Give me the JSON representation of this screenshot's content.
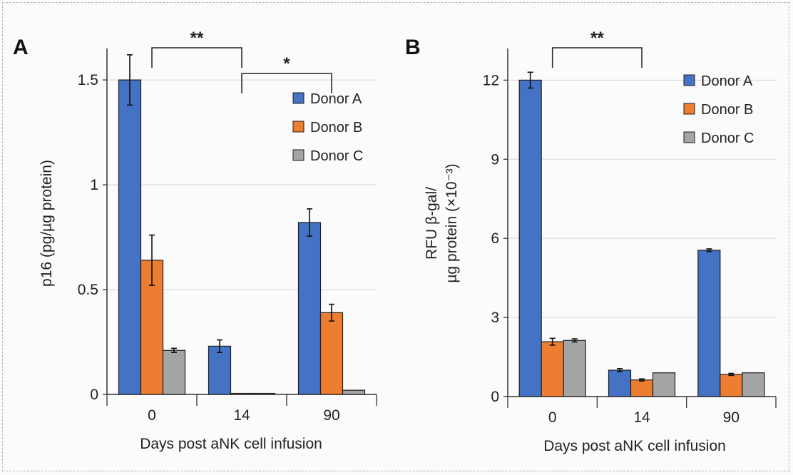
{
  "colors": {
    "donor_a": "#4472c4",
    "donor_b": "#ed7d31",
    "donor_c": "#a5a5a5",
    "grid": "#d6d6d6",
    "axis": "#333333"
  },
  "chart_data": [
    {
      "panel": "A",
      "type": "bar",
      "categories": [
        "0",
        "14",
        "90"
      ],
      "xlabel": "Days post aNK cell infusion",
      "ylabel": "p16 (pg/µg protein)",
      "ylim": [
        0,
        1.65
      ],
      "yticks": [
        0,
        0.5,
        1,
        1.5
      ],
      "ytick_labels": [
        "0",
        "0.5",
        "1",
        "1.5"
      ],
      "grid": true,
      "legend_position": "top-right",
      "series": [
        {
          "name": "Donor A",
          "values": [
            1.5,
            0.23,
            0.82
          ],
          "errors": [
            0.12,
            0.03,
            0.065
          ]
        },
        {
          "name": "Donor B",
          "values": [
            0.64,
            0.005,
            0.39
          ],
          "errors": [
            0.12,
            0.0,
            0.04
          ]
        },
        {
          "name": "Donor C",
          "values": [
            0.21,
            0.005,
            0.02
          ],
          "errors": [
            0.01,
            0.0,
            0.0
          ]
        }
      ],
      "significance": [
        {
          "from": 0,
          "to": 1,
          "label": "**",
          "level": 1
        },
        {
          "from": 1,
          "to": 2,
          "label": "*",
          "level": 2
        }
      ]
    },
    {
      "panel": "B",
      "type": "bar",
      "categories": [
        "0",
        "14",
        "90"
      ],
      "xlabel": "Days post aNK cell infusion",
      "ylabel_lines": [
        "RFU β-gal/",
        "µg protein (×10⁻³)"
      ],
      "ylim": [
        0,
        13.2
      ],
      "yticks": [
        0,
        3,
        6,
        9,
        12
      ],
      "ytick_labels": [
        "0",
        "3",
        "6",
        "9",
        "12"
      ],
      "grid": true,
      "legend_position": "top-right",
      "series": [
        {
          "name": "Donor A",
          "values": [
            12.0,
            1.0,
            5.55
          ],
          "errors": [
            0.3,
            0.06,
            0.05
          ]
        },
        {
          "name": "Donor B",
          "values": [
            2.08,
            0.63,
            0.84
          ],
          "errors": [
            0.13,
            0.04,
            0.04
          ]
        },
        {
          "name": "Donor C",
          "values": [
            2.13,
            0.9,
            0.9
          ],
          "errors": [
            0.06,
            0.0,
            0.0
          ]
        }
      ],
      "significance": [
        {
          "from": 0,
          "to": 1,
          "label": "**",
          "level": 1
        }
      ]
    }
  ]
}
